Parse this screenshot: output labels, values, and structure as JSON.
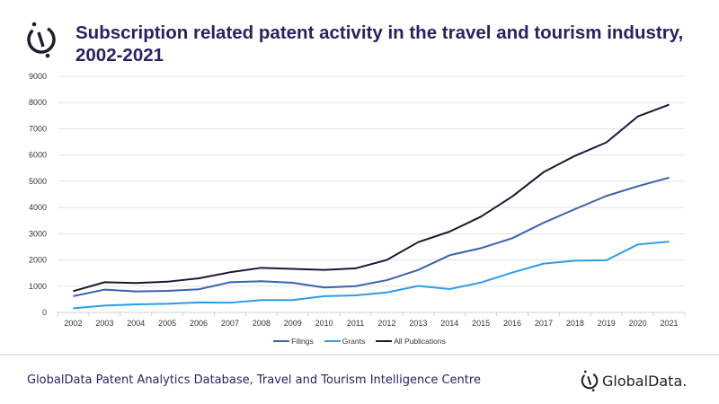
{
  "header": {
    "title": "Subscription related patent activity in the travel and tourism industry, 2002-2021"
  },
  "footer": {
    "source": "GlobalData Patent Analytics Database, Travel and Tourism Intelligence Centre",
    "brand": "GlobalData."
  },
  "chart_data": {
    "type": "line",
    "title": "Subscription related patent activity in the travel and tourism industry, 2002-2021",
    "xlabel": "",
    "ylabel": "",
    "ylim": [
      0,
      9000
    ],
    "yticks": [
      "0",
      "1000",
      "2000",
      "3000",
      "4000",
      "5000",
      "6000",
      "7000",
      "8000",
      "9000"
    ],
    "grid": true,
    "legend": "bottom",
    "categories": [
      "2002",
      "2003",
      "2004",
      "2005",
      "2006",
      "2007",
      "2008",
      "2009",
      "2010",
      "2011",
      "2012",
      "2013",
      "2014",
      "2015",
      "2016",
      "2017",
      "2018",
      "2019",
      "2020",
      "2021"
    ],
    "series": [
      {
        "name": "Filings",
        "color": "#3a62ad",
        "values": [
          620,
          870,
          800,
          820,
          880,
          1150,
          1190,
          1130,
          950,
          1000,
          1230,
          1620,
          2180,
          2450,
          2830,
          3420,
          3940,
          4440,
          4810,
          5140
        ]
      },
      {
        "name": "Grants",
        "color": "#2e9de6",
        "values": [
          160,
          260,
          310,
          330,
          380,
          370,
          470,
          470,
          620,
          650,
          760,
          1010,
          890,
          1140,
          1520,
          1860,
          1970,
          1990,
          2590,
          2700
        ]
      },
      {
        "name": "All Publications",
        "color": "#1d1536",
        "values": [
          810,
          1150,
          1120,
          1170,
          1300,
          1530,
          1700,
          1660,
          1620,
          1680,
          2000,
          2680,
          3080,
          3650,
          4420,
          5350,
          5970,
          6480,
          7470,
          7920
        ]
      }
    ]
  }
}
